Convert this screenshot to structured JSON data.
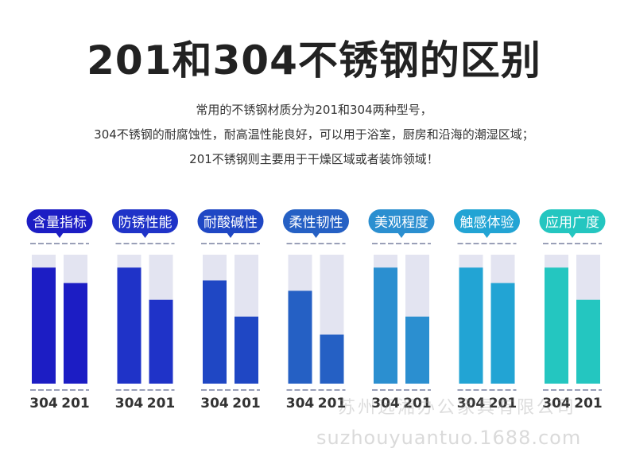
{
  "title": "201和304不锈钢的区别",
  "description": [
    "常用的不锈钢材质分为201和304两种型号，",
    "304不锈钢的耐腐蚀性，耐高温性能良好，可以用于浴室，厨房和沿海的潮湿区域；",
    "201不锈钢则主要用于干燥区域或者装饰领域！"
  ],
  "chart_data": {
    "type": "bar",
    "series_names": [
      "304",
      "201"
    ],
    "ylim": [
      0,
      100
    ],
    "panels": [
      {
        "label": "含量指标",
        "values": [
          90,
          78
        ],
        "color": "#1c1dc4"
      },
      {
        "label": "防锈性能",
        "values": [
          90,
          65
        ],
        "color": "#1f33c8"
      },
      {
        "label": "耐酸碱性",
        "values": [
          80,
          52
        ],
        "color": "#1f47c4"
      },
      {
        "label": "柔性韧性",
        "values": [
          72,
          38
        ],
        "color": "#2560c4"
      },
      {
        "label": "美观程度",
        "values": [
          90,
          52
        ],
        "color": "#2b8fd0"
      },
      {
        "label": "触感体验",
        "values": [
          90,
          78
        ],
        "color": "#22a4d4"
      },
      {
        "label": "应用广度",
        "values": [
          90,
          65
        ],
        "color": "#24c6c0"
      }
    ]
  },
  "watermark": {
    "company": "苏州远湘办公家具有限公司",
    "site": "suzhouyuantuo.1688.com"
  }
}
